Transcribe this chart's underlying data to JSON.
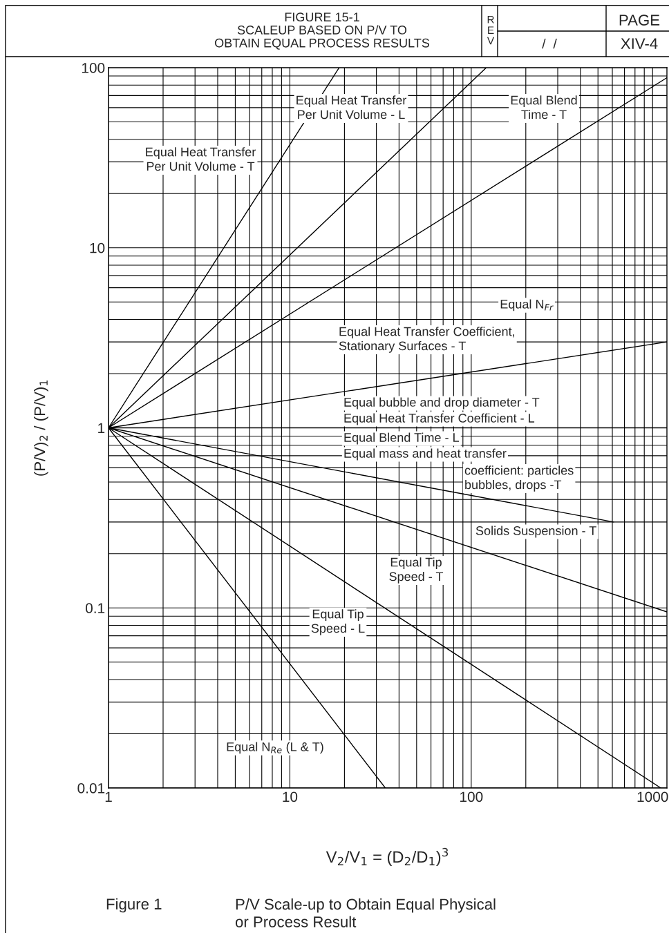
{
  "chart_data": {
    "type": "line",
    "title": "FIGURE 15-1\nSCALEUP BASED ON P/V TO\nOBTAIN EQUAL PROCESS RESULTS",
    "xlabel": "V$_{2}$/V$_{1}$ = (D$_{2}$/D$_{1}$)$^{3}$",
    "ylabel": "(P/V)$_{2}$ / (P/V)$_{1}$",
    "log": "xy",
    "xlim": [
      1,
      1200
    ],
    "ylim": [
      0.01,
      100
    ],
    "xticks": [
      1,
      10,
      100,
      1000
    ],
    "yticks": [
      0.01,
      0.1,
      1,
      10,
      100
    ],
    "grid": true,
    "legend": false,
    "line_style": "solid",
    "marker": "none",
    "series": [
      {
        "color": "#000000",
        "x": [
          1,
          18.7
        ],
        "values": [
          1,
          100
        ]
      },
      {
        "color": "#000000",
        "x": [
          1,
          121
        ],
        "values": [
          1,
          100
        ]
      },
      {
        "color": "#000000",
        "x": [
          1,
          1200
        ],
        "values": [
          1,
          88
        ]
      },
      {
        "color": "#000000",
        "x": [
          1,
          1200
        ],
        "values": [
          1,
          3
        ]
      },
      {
        "color": "#000000",
        "x": [
          1,
          610
        ],
        "values": [
          1,
          0.3
        ]
      },
      {
        "color": "#000000",
        "x": [
          1,
          1200
        ],
        "values": [
          1,
          0.095
        ]
      },
      {
        "color": "#000000",
        "x": [
          1,
          1110
        ],
        "values": [
          1,
          0.01
        ]
      },
      {
        "color": "#000000",
        "x": [
          1,
          33.6
        ],
        "values": [
          1,
          0.01
        ]
      }
    ],
    "ref_lines": [
      {
        "axis": "y",
        "value": 1,
        "color": "#000000"
      }
    ],
    "annotations": [
      "R\nE\nV",
      "/  /",
      "PAGE",
      "XIV-4",
      "Figure 1",
      "P/V Scale-up to Obtain Equal Physical\nor Process Result",
      "Equal Heat Transfer\nPer Unit Volume - T",
      "Equal Heat Transfer\nPer Unit Volume - L",
      "Equal Blend\nTime - T",
      "Equal N$_{Fr}$",
      "Equal Heat Transfer Coefficient,\nStationary Surfaces - T",
      "Equal bubble and drop diameter - T",
      "Equal Heat Transfer Coefficient - L",
      "Equal Blend Time - L",
      "Equal mass and heat transfer",
      "coefficient: particles\nbubbles, drops -T",
      "Solids Suspension - T",
      "Equal Tip\nSpeed - T",
      "Equal Tip\nSpeed - L",
      "Equal N$_{Re}$ (L & T)"
    ]
  }
}
